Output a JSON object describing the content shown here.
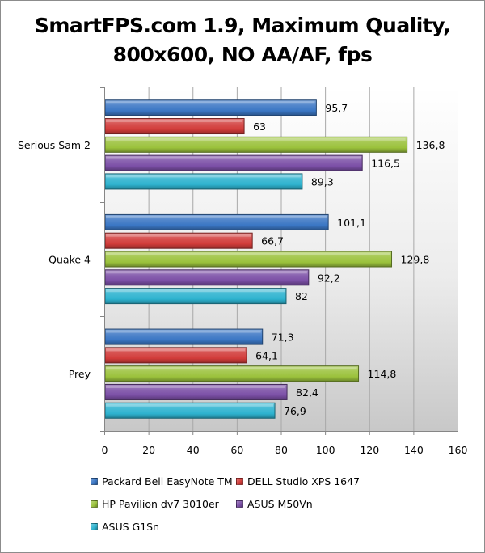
{
  "chart_data": {
    "type": "bar",
    "orientation": "horizontal",
    "title": "SmartFPS.com 1.9, Maximum Quality, 800x600, NO AA/AF, fps",
    "title_lines": [
      "SmartFPS.com 1.9, Maximum Quality,",
      "800x600, NO AA/AF, fps"
    ],
    "xlabel": "",
    "ylabel": "",
    "categories": [
      "Serious Sam 2",
      "Quake 4",
      "Prey"
    ],
    "series": [
      {
        "name": "Packard Bell EasyNote TM",
        "color": "#3a76c4",
        "values": [
          95.7,
          101.1,
          71.3
        ],
        "labels": [
          "95,7",
          "101,1",
          "71,3"
        ]
      },
      {
        "name": "DELL Studio XPS 1647",
        "color": "#d23c3a",
        "values": [
          63,
          66.7,
          64.1
        ],
        "labels": [
          "63",
          "66,7",
          "64,1"
        ]
      },
      {
        "name": "HP Pavilion dv7 3010er",
        "color": "#9bc23c",
        "values": [
          136.8,
          129.8,
          114.8
        ],
        "labels": [
          "136,8",
          "129,8",
          "114,8"
        ]
      },
      {
        "name": "ASUS M50Vn",
        "color": "#7b4fa6",
        "values": [
          116.5,
          92.2,
          82.4
        ],
        "labels": [
          "116,5",
          "92,2",
          "82,4"
        ]
      },
      {
        "name": "ASUS G1Sn",
        "color": "#2eb3cf",
        "values": [
          89.3,
          82,
          76.9
        ],
        "labels": [
          "89,3",
          "82",
          "76,9"
        ]
      }
    ],
    "xlim": [
      0,
      160
    ],
    "xticks": [
      0,
      20,
      40,
      60,
      80,
      100,
      120,
      140,
      160
    ],
    "xtick_labels": [
      "0",
      "20",
      "40",
      "60",
      "80",
      "100",
      "120",
      "140",
      "160"
    ],
    "grid": true,
    "legend_position": "bottom"
  }
}
